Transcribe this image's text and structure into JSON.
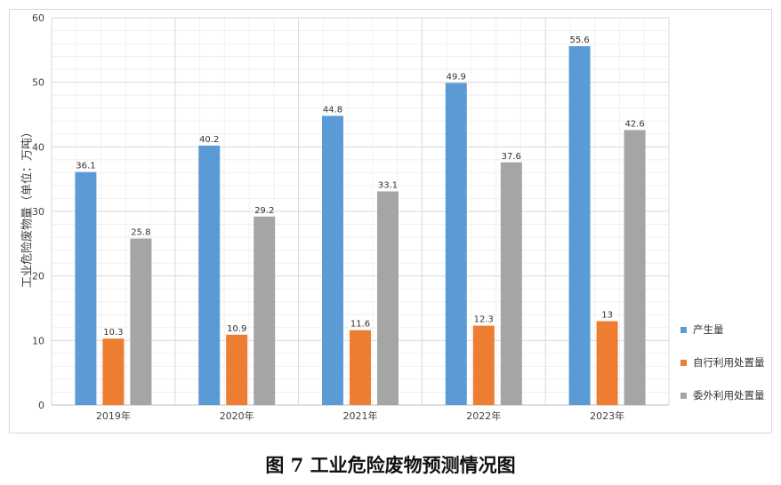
{
  "chart_data": {
    "type": "bar",
    "categories": [
      "2019年",
      "2020年",
      "2021年",
      "2022年",
      "2023年"
    ],
    "series": [
      {
        "name": "产生量",
        "values": [
          36.1,
          40.2,
          44.8,
          49.9,
          55.6
        ],
        "color": "#5b9bd5",
        "labels": [
          "36.1",
          "40.2",
          "44.8",
          "49.9",
          "55.6"
        ]
      },
      {
        "name": "自行利用处置量",
        "values": [
          10.3,
          10.9,
          11.6,
          12.3,
          13
        ],
        "color": "#ed7d31",
        "labels": [
          "10.3",
          "10.9",
          "11.6",
          "12.3",
          "13"
        ]
      },
      {
        "name": "委外利用处置量",
        "values": [
          25.8,
          29.2,
          33.1,
          37.6,
          42.6
        ],
        "color": "#a5a5a5",
        "labels": [
          "25.8",
          "29.2",
          "33.1",
          "37.6",
          "42.6"
        ]
      }
    ],
    "ylabel": "工业危险废物量（单位：万吨）",
    "ylim": [
      0,
      60
    ],
    "yticks": [
      "0",
      "10",
      "20",
      "30",
      "40",
      "50",
      "60"
    ],
    "grid": true,
    "legend_position": "right"
  },
  "caption": "图 7  工业危险废物预测情况图"
}
